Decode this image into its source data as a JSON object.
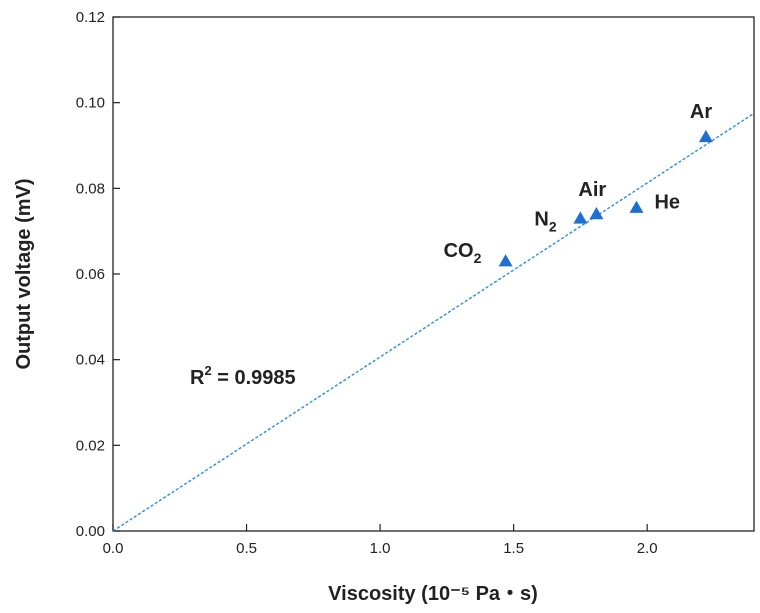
{
  "chart_data": {
    "type": "scatter",
    "xlabel": "Viscosity (10⁻⁵ Pa・s)",
    "ylabel": "Output voltage (mV)",
    "xlim": [
      0.0,
      2.4
    ],
    "ylim": [
      0.0,
      0.12
    ],
    "x_ticks": [
      0.0,
      0.5,
      1.0,
      1.5,
      2.0
    ],
    "x_tick_labels": [
      "0.0",
      "0.5",
      "1.0",
      "1.5",
      "2.0"
    ],
    "y_ticks": [
      0.0,
      0.02,
      0.04,
      0.06,
      0.08,
      0.1,
      0.12
    ],
    "y_tick_labels": [
      "0.00",
      "0.02",
      "0.04",
      "0.06",
      "0.08",
      "0.10",
      "0.12"
    ],
    "grid": false,
    "marker_color": "#1e6fd0",
    "fit_line_color": "#2a8ee0",
    "points": [
      {
        "label": "CO",
        "subscript": "2",
        "x": 1.47,
        "y": 0.063
      },
      {
        "label": "N",
        "subscript": "2",
        "x": 1.75,
        "y": 0.073
      },
      {
        "label": "Air",
        "subscript": "",
        "x": 1.81,
        "y": 0.074
      },
      {
        "label": "He",
        "subscript": "",
        "x": 1.96,
        "y": 0.0755
      },
      {
        "label": "Ar",
        "subscript": "",
        "x": 2.22,
        "y": 0.092
      }
    ],
    "fit_line": {
      "x0": 0.0,
      "y0": 0.0,
      "x1": 2.4,
      "y1": 0.0975
    },
    "annotation": {
      "prefix": "R",
      "superscript": "2",
      "suffix": " = 0.9985"
    }
  }
}
